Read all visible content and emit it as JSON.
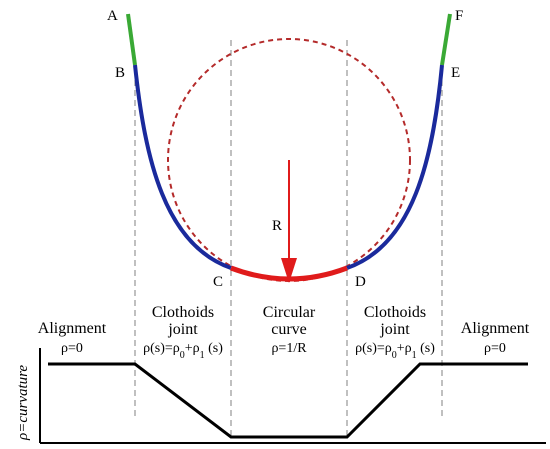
{
  "diagram": {
    "points": {
      "A": "A",
      "B": "B",
      "C": "C",
      "D": "D",
      "E": "E",
      "F": "F",
      "R": "R"
    },
    "sections": {
      "left_alignment": {
        "title": "Alignment",
        "formula": "ρ=0"
      },
      "left_clothoid": {
        "title1": "Clothoids",
        "title2": "joint",
        "formula_prefix": "ρ(s)=ρ",
        "sub0": "0",
        "plus": "+ρ",
        "sub1": "1",
        "formula_suffix": " (s)"
      },
      "circular": {
        "title1": "Circular",
        "title2": "curve",
        "formula": "ρ=1/R"
      },
      "right_clothoid": {
        "title1": "Clothoids",
        "title2": "joint",
        "formula_prefix": "ρ(s)=ρ",
        "sub0": "0",
        "plus": "+ρ",
        "sub1": "1",
        "formula_suffix": " (s)"
      },
      "right_alignment": {
        "title": "Alignment",
        "formula": "ρ=0"
      }
    },
    "y_axis_label": "ρ=curvature",
    "colors": {
      "tangent": "#3aa935",
      "clothoid": "#1a2a9c",
      "circular": "#e01b1b",
      "dashed_circle": "#b42a2a",
      "radius_arrow": "#e01b1b",
      "axes": "#000000",
      "divider": "#808080"
    }
  }
}
